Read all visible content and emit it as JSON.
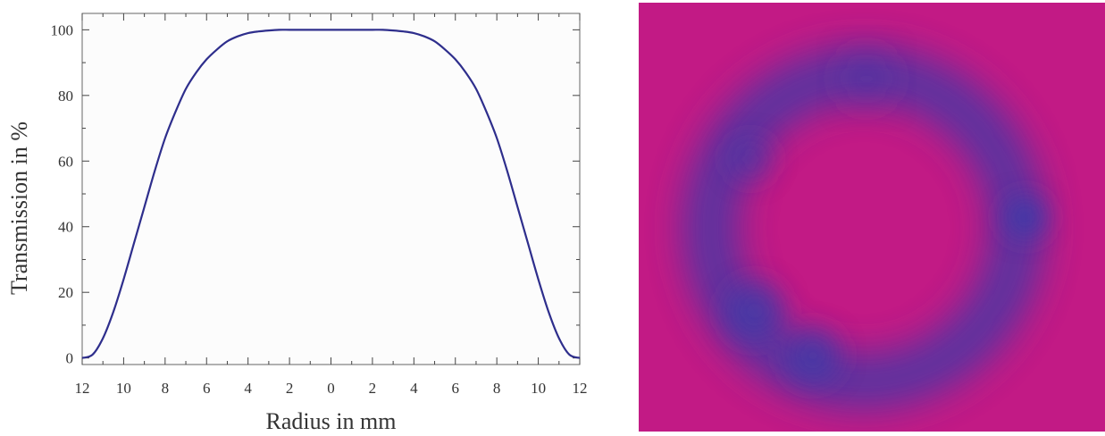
{
  "chart_data": {
    "type": "line",
    "xlabel": "Radius in mm",
    "ylabel": "Transmission in %",
    "xlim": [
      -12,
      12
    ],
    "ylim": [
      -2,
      105
    ],
    "x_tick_values": [
      -12,
      -10,
      -8,
      -6,
      -4,
      -2,
      0,
      2,
      4,
      6,
      8,
      10,
      12
    ],
    "x_tick_labels": [
      "12",
      "10",
      "8",
      "6",
      "4",
      "2",
      "0",
      "2",
      "4",
      "6",
      "8",
      "10",
      "12"
    ],
    "y_ticks": [
      0,
      20,
      40,
      60,
      80,
      100
    ],
    "grid": false,
    "line_color": "#2e2e8c",
    "series": [
      {
        "x": [
          -12,
          -11.5,
          -11,
          -10.5,
          -10,
          -9.5,
          -9,
          -8.5,
          -8,
          -7.5,
          -7,
          -6.5,
          -6,
          -5.5,
          -5,
          -4.5,
          -4,
          -3.5,
          -3,
          -2.5,
          -2,
          -1.5,
          -1,
          -0.5,
          0,
          0.5,
          1,
          1.5,
          2,
          2.5,
          3,
          3.5,
          4,
          4.5,
          5,
          5.5,
          6,
          6.5,
          7,
          7.5,
          8,
          8.5,
          9,
          9.5,
          10,
          10.5,
          11,
          11.5,
          12
        ],
        "values": [
          0,
          1,
          6,
          14,
          24,
          35,
          46,
          57,
          67,
          75,
          82,
          87,
          91,
          94,
          96.5,
          98,
          99,
          99.5,
          99.8,
          100,
          100,
          100,
          100,
          100,
          100,
          100,
          100,
          100,
          100,
          100,
          99.8,
          99.5,
          99,
          98,
          96.5,
          94,
          91,
          87,
          82,
          75,
          67,
          57,
          46,
          35,
          24,
          14,
          6,
          1,
          0
        ]
      }
    ]
  },
  "beam_image": {
    "background_color": "#c21a85",
    "ring_color": "#3b3ba8"
  }
}
